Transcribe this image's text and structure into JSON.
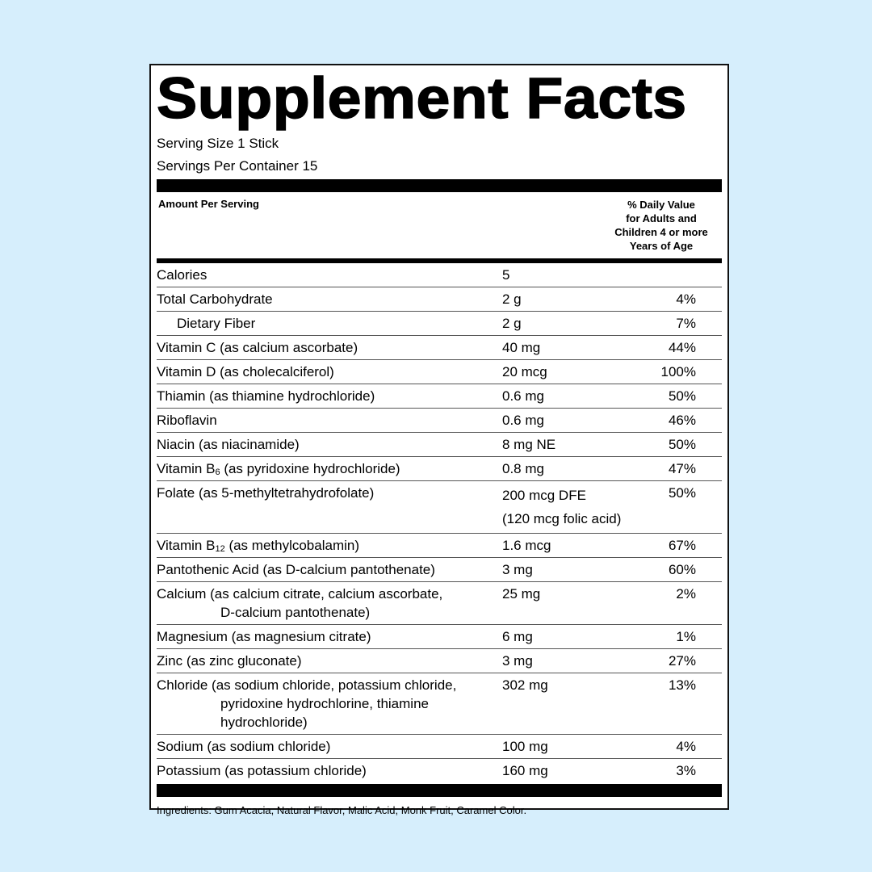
{
  "header": {
    "title": "Supplement Facts",
    "serving_size": "Serving Size 1 Stick",
    "servings_per_container": "Servings Per Container 15"
  },
  "columns": {
    "amount": "Amount Per Serving",
    "daily_value": [
      "% Daily Value",
      "for Adults and",
      "Children 4 or more",
      "Years of Age"
    ]
  },
  "rows": [
    {
      "name": "Calories",
      "amount": "5"
    },
    {
      "name": "Total Carbohydrate",
      "amount": "2 g",
      "dv": "4%"
    },
    {
      "name": "Dietary Fiber",
      "amount": "2 g",
      "dv": "7%",
      "sub_row": true
    },
    {
      "name": "Vitamin C (as calcium ascorbate)",
      "amount": "40 mg",
      "dv": "44%"
    },
    {
      "name": "Vitamin D (as cholecalciferol)",
      "amount": "20 mcg",
      "dv": "100%"
    },
    {
      "name": "Thiamin (as thiamine hydrochloride)",
      "amount": "0.6 mg",
      "dv": "50%"
    },
    {
      "name": "Riboflavin",
      "amount": "0.6 mg",
      "dv": "46%"
    },
    {
      "name": "Niacin (as niacinamide)",
      "amount": "8 mg NE",
      "dv": "50%"
    },
    {
      "name": "Vitamin B",
      "name_sub": "6",
      "name_rest": "(as pyridoxine hydrochloride)",
      "amount": "0.8 mg",
      "dv": "47%"
    },
    {
      "name": "Folate (as 5-methyltetrahydrofolate)",
      "amount": "200 mcg DFE",
      "amount_note": "(120 mcg folic acid)",
      "dv": "50%"
    },
    {
      "name": "Vitamin B",
      "name_sub": "12",
      "name_rest": "(as methylcobalamin)",
      "amount": "1.6 mcg",
      "dv": "67%"
    },
    {
      "name": "Pantothenic Acid (as D-calcium pantothenate)",
      "amount": "3 mg",
      "dv": "60%"
    },
    {
      "name": "Calcium (as calcium citrate, calcium ascorbate,",
      "name_cont": [
        "D-calcium pantothenate)"
      ],
      "amount": "25 mg",
      "dv": "2%"
    },
    {
      "name": "Magnesium (as magnesium citrate)",
      "amount": "6 mg",
      "dv": "1%"
    },
    {
      "name": "Zinc (as zinc gluconate)",
      "amount": "3 mg",
      "dv": "27%"
    },
    {
      "name": "Chloride (as sodium chloride, potassium chloride,",
      "name_cont": [
        "pyridoxine hydrochlorine, thiamine",
        "hydrochloride)"
      ],
      "amount": "302 mg",
      "dv": "13%"
    },
    {
      "name": "Sodium (as sodium chloride)",
      "amount": "100 mg",
      "dv": "4%"
    },
    {
      "name": "Potassium (as potassium chloride)",
      "amount": "160 mg",
      "dv": "3%"
    }
  ],
  "ingredients": "Ingredients: Gum Acacia, Natural Flavor, Malic Acid, Monk Fruit, Caramel Color."
}
